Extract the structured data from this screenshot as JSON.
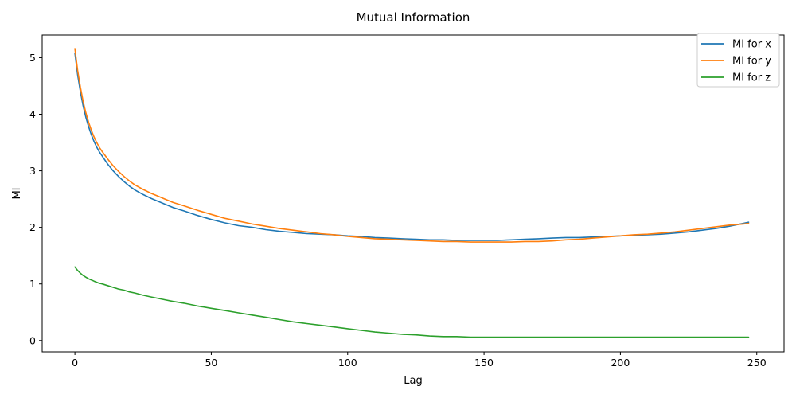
{
  "chart_data": {
    "type": "line",
    "title": "Mutual Information",
    "xlabel": "Lag",
    "ylabel": "MI",
    "xlim": [
      -12,
      260
    ],
    "ylim": [
      -0.2,
      5.4
    ],
    "x_ticks": [
      0,
      50,
      100,
      150,
      200,
      250
    ],
    "y_ticks": [
      0,
      1,
      2,
      3,
      4,
      5
    ],
    "grid": false,
    "legend_position": "top-right",
    "x": [
      0,
      1,
      2,
      3,
      4,
      5,
      6,
      7,
      8,
      9,
      10,
      12,
      14,
      16,
      18,
      20,
      22,
      25,
      28,
      30,
      33,
      36,
      40,
      45,
      50,
      55,
      60,
      65,
      70,
      75,
      80,
      85,
      90,
      95,
      100,
      105,
      110,
      115,
      120,
      125,
      130,
      135,
      140,
      145,
      150,
      155,
      160,
      165,
      170,
      175,
      180,
      185,
      190,
      195,
      200,
      205,
      210,
      215,
      220,
      225,
      230,
      235,
      240,
      245,
      247
    ],
    "series": [
      {
        "name": "MI for x",
        "color": "#1f77b4",
        "values": [
          5.08,
          4.7,
          4.4,
          4.15,
          3.95,
          3.78,
          3.64,
          3.52,
          3.42,
          3.33,
          3.26,
          3.12,
          3.0,
          2.9,
          2.81,
          2.73,
          2.66,
          2.58,
          2.51,
          2.47,
          2.41,
          2.35,
          2.29,
          2.21,
          2.14,
          2.08,
          2.03,
          2.0,
          1.96,
          1.93,
          1.91,
          1.89,
          1.88,
          1.87,
          1.85,
          1.84,
          1.82,
          1.81,
          1.8,
          1.79,
          1.78,
          1.78,
          1.77,
          1.77,
          1.77,
          1.77,
          1.78,
          1.79,
          1.8,
          1.81,
          1.82,
          1.82,
          1.83,
          1.84,
          1.85,
          1.86,
          1.87,
          1.88,
          1.9,
          1.92,
          1.95,
          1.98,
          2.02,
          2.07,
          2.09
        ]
      },
      {
        "name": "MI for y",
        "color": "#ff7f0e",
        "values": [
          5.16,
          4.78,
          4.48,
          4.23,
          4.03,
          3.86,
          3.72,
          3.6,
          3.5,
          3.41,
          3.34,
          3.21,
          3.09,
          2.99,
          2.9,
          2.82,
          2.75,
          2.67,
          2.6,
          2.56,
          2.5,
          2.44,
          2.38,
          2.3,
          2.23,
          2.16,
          2.11,
          2.06,
          2.02,
          1.98,
          1.95,
          1.92,
          1.89,
          1.87,
          1.84,
          1.82,
          1.8,
          1.79,
          1.78,
          1.77,
          1.76,
          1.75,
          1.75,
          1.74,
          1.74,
          1.74,
          1.74,
          1.75,
          1.75,
          1.76,
          1.78,
          1.79,
          1.81,
          1.83,
          1.85,
          1.87,
          1.88,
          1.9,
          1.92,
          1.95,
          1.98,
          2.01,
          2.04,
          2.06,
          2.07
        ]
      },
      {
        "name": "MI for z",
        "color": "#2ca02c",
        "values": [
          1.3,
          1.24,
          1.19,
          1.15,
          1.12,
          1.09,
          1.07,
          1.05,
          1.03,
          1.01,
          1.0,
          0.97,
          0.94,
          0.91,
          0.89,
          0.86,
          0.84,
          0.8,
          0.77,
          0.75,
          0.72,
          0.69,
          0.66,
          0.61,
          0.57,
          0.53,
          0.49,
          0.45,
          0.41,
          0.37,
          0.33,
          0.3,
          0.27,
          0.24,
          0.21,
          0.18,
          0.15,
          0.13,
          0.11,
          0.1,
          0.08,
          0.07,
          0.07,
          0.06,
          0.06,
          0.06,
          0.06,
          0.06,
          0.06,
          0.06,
          0.06,
          0.06,
          0.06,
          0.06,
          0.06,
          0.06,
          0.06,
          0.06,
          0.06,
          0.06,
          0.06,
          0.06,
          0.06,
          0.06,
          0.06
        ]
      }
    ]
  }
}
